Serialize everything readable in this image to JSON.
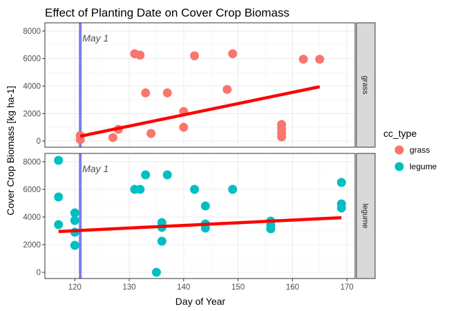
{
  "chart_data": {
    "type": "scatter",
    "title": "Effect of Planting Date on Cover Crop Biomass",
    "xlabel": "Day of Year",
    "ylabel": "Cover Crop Biomass [kg ha-1]",
    "xlim": [
      114.5,
      171.5
    ],
    "ylim": [
      -450,
      8600
    ],
    "x_ticks": [
      120,
      130,
      140,
      150,
      160,
      170
    ],
    "y_ticks": [
      0,
      2000,
      4000,
      6000,
      8000
    ],
    "grid": true,
    "legend": {
      "title": "cc_type",
      "position": "right",
      "items": [
        {
          "label": "grass",
          "color": "#F8766D"
        },
        {
          "label": "legume",
          "color": "#00BFC4"
        }
      ]
    },
    "vline": {
      "x": 121,
      "label": "May 1",
      "color": "#7B7BEF"
    },
    "panels": [
      {
        "strip": "grass",
        "color": "#F8766D",
        "points": [
          {
            "x": 121,
            "y": 400
          },
          {
            "x": 121,
            "y": 100
          },
          {
            "x": 127,
            "y": 250
          },
          {
            "x": 128,
            "y": 850
          },
          {
            "x": 131,
            "y": 6350
          },
          {
            "x": 132,
            "y": 6250
          },
          {
            "x": 133,
            "y": 3500
          },
          {
            "x": 134,
            "y": 550
          },
          {
            "x": 137,
            "y": 3500
          },
          {
            "x": 140,
            "y": 2150
          },
          {
            "x": 140,
            "y": 1000
          },
          {
            "x": 142,
            "y": 6200
          },
          {
            "x": 148,
            "y": 3750
          },
          {
            "x": 149,
            "y": 6350
          },
          {
            "x": 158,
            "y": 1200
          },
          {
            "x": 158,
            "y": 900
          },
          {
            "x": 158,
            "y": 600
          },
          {
            "x": 158,
            "y": 300
          },
          {
            "x": 162,
            "y": 5950
          },
          {
            "x": 165,
            "y": 5950
          }
        ],
        "trend": {
          "x": [
            121,
            165
          ],
          "y": [
            350,
            3950
          ]
        }
      },
      {
        "strip": "legume",
        "color": "#00BFC4",
        "points": [
          {
            "x": 117,
            "y": 8100
          },
          {
            "x": 117,
            "y": 5450
          },
          {
            "x": 117,
            "y": 3450
          },
          {
            "x": 120,
            "y": 4300
          },
          {
            "x": 120,
            "y": 3750
          },
          {
            "x": 120,
            "y": 2900
          },
          {
            "x": 120,
            "y": 1950
          },
          {
            "x": 131,
            "y": 6000
          },
          {
            "x": 132,
            "y": 6000
          },
          {
            "x": 133,
            "y": 7050
          },
          {
            "x": 135,
            "y": 0
          },
          {
            "x": 136,
            "y": 3600
          },
          {
            "x": 136,
            "y": 3250
          },
          {
            "x": 136,
            "y": 2250
          },
          {
            "x": 137,
            "y": 7050
          },
          {
            "x": 142,
            "y": 6000
          },
          {
            "x": 144,
            "y": 4800
          },
          {
            "x": 144,
            "y": 3500
          },
          {
            "x": 144,
            "y": 3200
          },
          {
            "x": 149,
            "y": 6000
          },
          {
            "x": 156,
            "y": 3700
          },
          {
            "x": 156,
            "y": 3400
          },
          {
            "x": 156,
            "y": 3150
          },
          {
            "x": 169,
            "y": 6500
          },
          {
            "x": 169,
            "y": 4950
          },
          {
            "x": 169,
            "y": 4650
          }
        ],
        "trend": {
          "x": [
            117,
            169
          ],
          "y": [
            2950,
            3950
          ]
        }
      }
    ]
  }
}
